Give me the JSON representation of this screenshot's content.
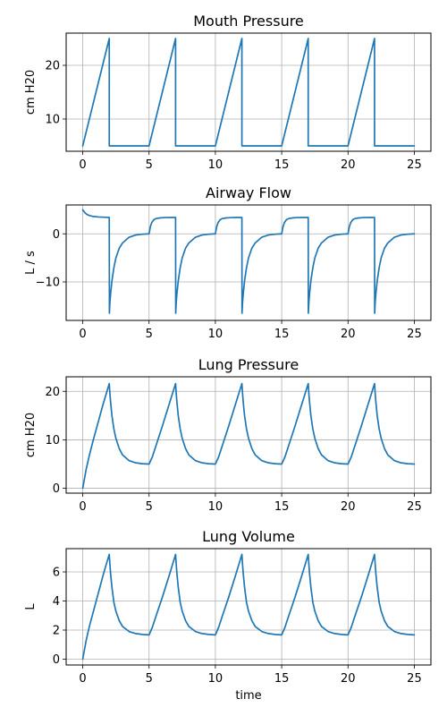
{
  "chart_data": [
    {
      "type": "line",
      "title": "Mouth Pressure",
      "xlabel": "",
      "ylabel": "cm H20",
      "xlim": [
        -1.25,
        26.25
      ],
      "ylim": [
        4,
        26
      ],
      "xticks": [
        0,
        5,
        10,
        15,
        20,
        25
      ],
      "yticks": [
        10,
        20
      ],
      "grid": true,
      "color": "#1f77b4",
      "series": [
        {
          "x": [
            0,
            2,
            2,
            5,
            7,
            7,
            10,
            12,
            12,
            15,
            17,
            17,
            20,
            22,
            22,
            25
          ],
          "y": [
            5,
            25,
            5,
            5,
            25,
            5,
            5,
            25,
            5,
            5,
            25,
            5,
            5,
            25,
            5,
            5
          ]
        }
      ]
    },
    {
      "type": "line",
      "title": "Airway Flow",
      "xlabel": "",
      "ylabel": "L / s",
      "xlim": [
        -1.25,
        26.25
      ],
      "ylim": [
        -18,
        6
      ],
      "xticks": [
        0,
        5,
        10,
        15,
        20,
        25
      ],
      "yticks": [
        -10,
        0
      ],
      "grid": true,
      "color": "#1f77b4",
      "series": [
        {
          "x": [
            0,
            0.1,
            0.2,
            0.3,
            0.5,
            0.8,
            1.2,
            1.6,
            2,
            2.01,
            2.05,
            2.1,
            2.2,
            2.35,
            2.5,
            2.75,
            3,
            3.5,
            4,
            4.5,
            5,
            5.1,
            5.2,
            5.35,
            5.5,
            5.8,
            6.2,
            6.6,
            7,
            7.01,
            7.05,
            7.1,
            7.2,
            7.35,
            7.5,
            7.75,
            8,
            8.5,
            9,
            9.5,
            10,
            10.1,
            10.2,
            10.35,
            10.5,
            10.8,
            11.2,
            11.6,
            12,
            12.01,
            12.05,
            12.1,
            12.2,
            12.35,
            12.5,
            12.75,
            13,
            13.5,
            14,
            14.5,
            15,
            15.1,
            15.2,
            15.35,
            15.5,
            15.8,
            16.2,
            16.6,
            17,
            17.01,
            17.05,
            17.1,
            17.2,
            17.35,
            17.5,
            17.75,
            18,
            18.5,
            19,
            19.5,
            20,
            20.1,
            20.2,
            20.35,
            20.5,
            20.8,
            21.2,
            21.6,
            22,
            22.01,
            22.05,
            22.1,
            22.2,
            22.35,
            22.5,
            22.75,
            23,
            23.5,
            24,
            24.5,
            25
          ],
          "y": [
            5,
            4.6,
            4.3,
            4.05,
            3.8,
            3.6,
            3.5,
            3.45,
            3.4,
            -16.5,
            -14.2,
            -12.5,
            -9.8,
            -7,
            -5,
            -3,
            -1.9,
            -0.7,
            -0.25,
            -0.08,
            0,
            1.5,
            2.3,
            2.9,
            3.15,
            3.3,
            3.38,
            3.4,
            3.4,
            -16.5,
            -14.2,
            -12.5,
            -9.8,
            -7,
            -5,
            -3,
            -1.9,
            -0.7,
            -0.25,
            -0.08,
            0,
            1.5,
            2.3,
            2.9,
            3.15,
            3.3,
            3.38,
            3.4,
            3.4,
            -16.5,
            -14.2,
            -12.5,
            -9.8,
            -7,
            -5,
            -3,
            -1.9,
            -0.7,
            -0.25,
            -0.08,
            0,
            1.5,
            2.3,
            2.9,
            3.15,
            3.3,
            3.38,
            3.4,
            3.4,
            -16.5,
            -14.2,
            -12.5,
            -9.8,
            -7,
            -5,
            -3,
            -1.9,
            -0.7,
            -0.25,
            -0.08,
            0,
            1.5,
            2.3,
            2.9,
            3.15,
            3.3,
            3.38,
            3.4,
            3.4,
            -16.5,
            -14.2,
            -12.5,
            -9.8,
            -7,
            -5,
            -3,
            -1.9,
            -0.7,
            -0.25,
            -0.08,
            0
          ]
        }
      ]
    },
    {
      "type": "line",
      "title": "Lung Pressure",
      "xlabel": "",
      "ylabel": "cm H20",
      "xlim": [
        -1.25,
        26.25
      ],
      "ylim": [
        -1,
        23
      ],
      "xticks": [
        0,
        5,
        10,
        15,
        20,
        25
      ],
      "yticks": [
        0,
        10,
        20
      ],
      "grid": true,
      "color": "#1f77b4",
      "series": [
        {
          "x": [
            0,
            0.1,
            0.25,
            0.5,
            0.75,
            1,
            1.25,
            1.5,
            1.75,
            2,
            2.05,
            2.1,
            2.2,
            2.35,
            2.5,
            2.75,
            3,
            3.5,
            4,
            4.5,
            5,
            5.25,
            5.5,
            6,
            6.5,
            7,
            7.05,
            7.1,
            7.2,
            7.35,
            7.5,
            7.75,
            8,
            8.5,
            9,
            9.5,
            10,
            10.25,
            10.5,
            11,
            11.5,
            12,
            12.05,
            12.1,
            12.2,
            12.35,
            12.5,
            12.75,
            13,
            13.5,
            14,
            14.5,
            15,
            15.25,
            15.5,
            16,
            16.5,
            17,
            17.05,
            17.1,
            17.2,
            17.35,
            17.5,
            17.75,
            18,
            18.5,
            19,
            19.5,
            20,
            20.25,
            20.5,
            21,
            21.5,
            22,
            22.05,
            22.1,
            22.2,
            22.35,
            22.5,
            22.75,
            23,
            23.5,
            24,
            24.5,
            25
          ],
          "y": [
            0,
            1.5,
            3.8,
            6.8,
            9.5,
            12,
            14.5,
            17,
            19.3,
            21.6,
            19.5,
            17.8,
            15,
            12.2,
            10.3,
            8.2,
            6.9,
            5.7,
            5.25,
            5.07,
            5,
            6.5,
            8.6,
            12.8,
            17.2,
            21.6,
            19.5,
            17.8,
            15,
            12.2,
            10.3,
            8.2,
            6.9,
            5.7,
            5.25,
            5.07,
            5,
            6.5,
            8.6,
            12.8,
            17.2,
            21.6,
            19.5,
            17.8,
            15,
            12.2,
            10.3,
            8.2,
            6.9,
            5.7,
            5.25,
            5.07,
            5,
            6.5,
            8.6,
            12.8,
            17.2,
            21.6,
            19.5,
            17.8,
            15,
            12.2,
            10.3,
            8.2,
            6.9,
            5.7,
            5.25,
            5.07,
            5,
            6.5,
            8.6,
            12.8,
            17.2,
            21.6,
            19.5,
            17.8,
            15,
            12.2,
            10.3,
            8.2,
            6.9,
            5.7,
            5.25,
            5.07,
            5
          ]
        }
      ]
    },
    {
      "type": "line",
      "title": "Lung Volume",
      "xlabel": "time",
      "ylabel": "L",
      "xlim": [
        -1.25,
        26.25
      ],
      "ylim": [
        -0.4,
        7.6
      ],
      "xticks": [
        0,
        5,
        10,
        15,
        20,
        25
      ],
      "yticks": [
        0,
        2,
        4,
        6
      ],
      "grid": true,
      "color": "#1f77b4",
      "series": [
        {
          "x": [
            0,
            0.1,
            0.25,
            0.5,
            0.75,
            1,
            1.25,
            1.5,
            1.75,
            2,
            2.05,
            2.1,
            2.2,
            2.35,
            2.5,
            2.75,
            3,
            3.5,
            4,
            4.5,
            5,
            5.25,
            5.5,
            6,
            6.5,
            7,
            7.05,
            7.1,
            7.2,
            7.35,
            7.5,
            7.75,
            8,
            8.5,
            9,
            9.5,
            10,
            10.25,
            10.5,
            11,
            11.5,
            12,
            12.05,
            12.1,
            12.2,
            12.35,
            12.5,
            12.75,
            13,
            13.5,
            14,
            14.5,
            15,
            15.25,
            15.5,
            16,
            16.5,
            17,
            17.05,
            17.1,
            17.2,
            17.35,
            17.5,
            17.75,
            18,
            18.5,
            19,
            19.5,
            20,
            20.25,
            20.5,
            21,
            21.5,
            22,
            22.05,
            22.1,
            22.2,
            22.35,
            22.5,
            22.75,
            23,
            23.5,
            24,
            24.5,
            25
          ],
          "y": [
            0,
            0.5,
            1.25,
            2.25,
            3.1,
            3.95,
            4.8,
            5.65,
            6.45,
            7.2,
            6.5,
            5.9,
            4.95,
            3.9,
            3.3,
            2.65,
            2.25,
            1.9,
            1.76,
            1.7,
            1.67,
            2.2,
            2.9,
            4.25,
            5.7,
            7.2,
            6.5,
            5.9,
            4.95,
            3.9,
            3.3,
            2.65,
            2.25,
            1.9,
            1.76,
            1.7,
            1.67,
            2.2,
            2.9,
            4.25,
            5.7,
            7.2,
            6.5,
            5.9,
            4.95,
            3.9,
            3.3,
            2.65,
            2.25,
            1.9,
            1.76,
            1.7,
            1.67,
            2.2,
            2.9,
            4.25,
            5.7,
            7.2,
            6.5,
            5.9,
            4.95,
            3.9,
            3.3,
            2.65,
            2.25,
            1.9,
            1.76,
            1.7,
            1.67,
            2.2,
            2.9,
            4.25,
            5.7,
            7.2,
            6.5,
            5.9,
            4.95,
            3.9,
            3.3,
            2.65,
            2.25,
            1.9,
            1.76,
            1.7,
            1.67
          ]
        }
      ]
    }
  ]
}
